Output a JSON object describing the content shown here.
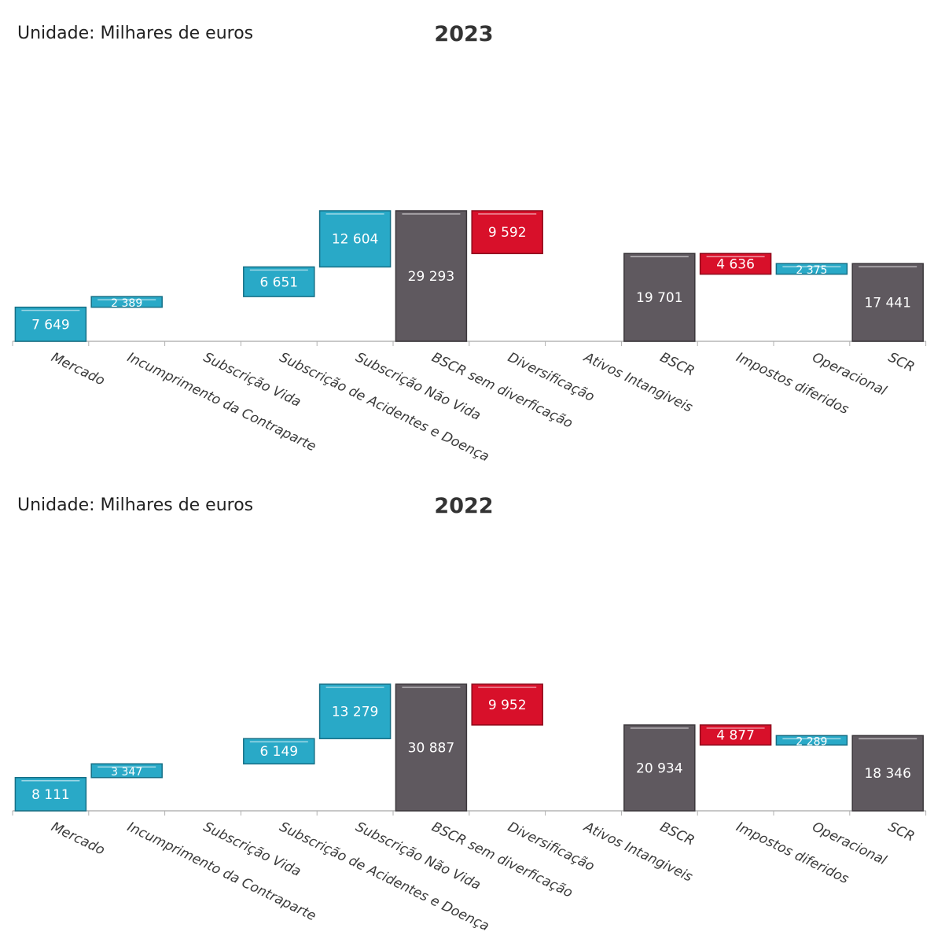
{
  "colors": {
    "positive": "#29a9c7",
    "positive_edge": "#156f86",
    "negative": "#d8102a",
    "negative_edge": "#8e0a1b",
    "total": "#5f595f",
    "total_edge": "#3b373b",
    "axis": "#c8c8c8",
    "tick": "#b0b0b0"
  },
  "chart_data": [
    {
      "type": "bar",
      "subtype": "waterfall",
      "title": "2023",
      "unit_label": "Unidade: Milhares de euros",
      "categories": [
        "Mercado",
        "Incumprimento da Contraparte",
        "Subscrição Vida",
        "Subscrição de Acidentes e Doença",
        "Subscrição Não Vida",
        "BSCR sem diverficação",
        "Diversificação",
        "Ativos Intangiveis",
        "BSCR",
        "Impostos diferidos",
        "Operacional",
        "SCR"
      ],
      "values": [
        7649,
        2389,
        0,
        6651,
        12604,
        29293,
        -9592,
        0,
        19701,
        -4636,
        2375,
        17441
      ],
      "labels": [
        "7 649",
        "2 389",
        "",
        "6 651",
        "12 604",
        "29 293",
        "9 592",
        "",
        "19 701",
        "4 636",
        "2 375",
        "17 441"
      ],
      "kinds": [
        "up",
        "up",
        "up",
        "up",
        "up",
        "total",
        "down",
        "up",
        "total",
        "down",
        "up",
        "total"
      ]
    },
    {
      "type": "bar",
      "subtype": "waterfall",
      "title": "2022",
      "unit_label": "Unidade: Milhares de euros",
      "categories": [
        "Mercado",
        "Incumprimento da Contraparte",
        "Subscrição Vida",
        "Subscrição de Acidentes e Doença",
        "Subscrição Não Vida",
        "BSCR sem diverficação",
        "Diversificação",
        "Ativos Intangiveis",
        "BSCR",
        "Impostos diferidos",
        "Operacional",
        "SCR"
      ],
      "values": [
        8111,
        3347,
        0,
        6149,
        13279,
        30887,
        -9952,
        0,
        20934,
        -4877,
        2289,
        18346
      ],
      "labels": [
        "8 111",
        "3 347",
        "",
        "6 149",
        "13 279",
        "30 887",
        "9 952",
        "",
        "20 934",
        "4 877",
        "2 289",
        "18 346"
      ],
      "kinds": [
        "up",
        "up",
        "up",
        "up",
        "up",
        "total",
        "down",
        "up",
        "total",
        "down",
        "up",
        "total"
      ]
    }
  ]
}
